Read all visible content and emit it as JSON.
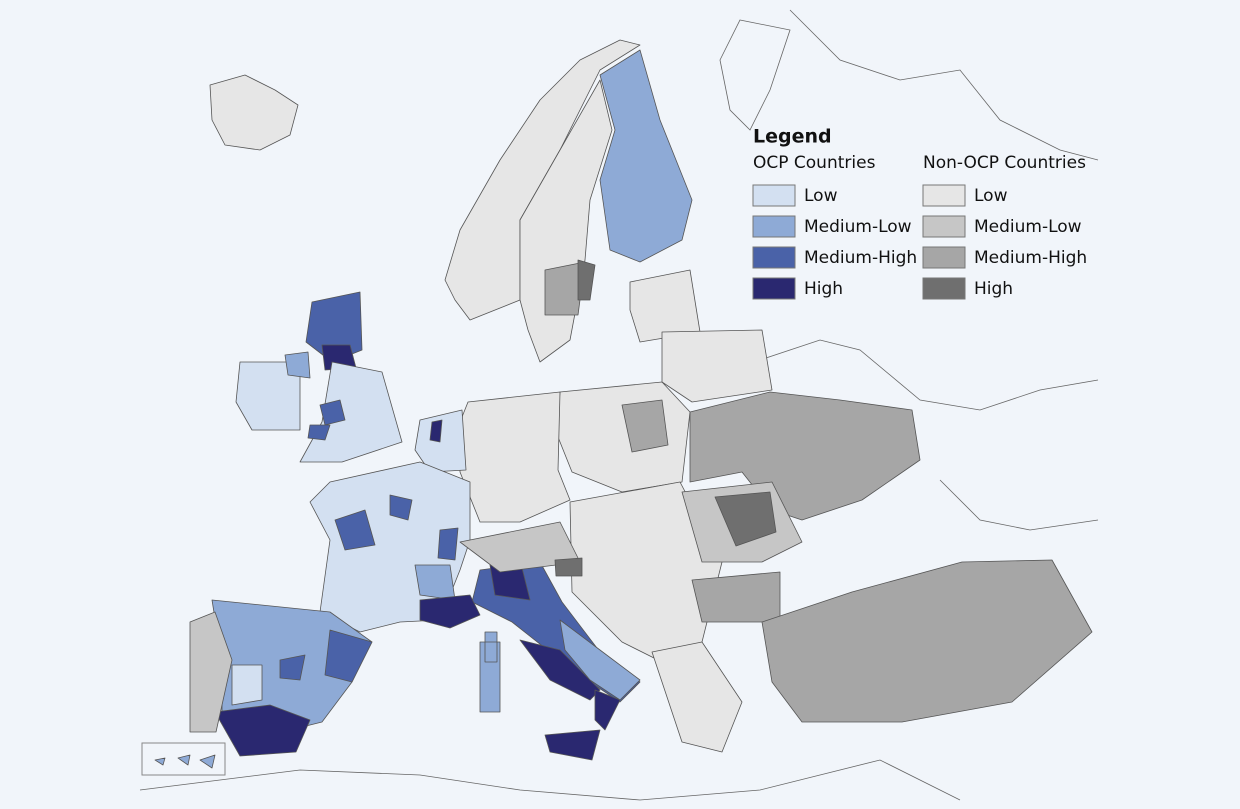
{
  "legend": {
    "title": "Legend",
    "groups": [
      {
        "title": "OCP Countries",
        "items": [
          {
            "label": "Low",
            "color": "#d3e0f1"
          },
          {
            "label": "Medium-Low",
            "color": "#8eaad6"
          },
          {
            "label": "Medium-High",
            "color": "#4a62a8"
          },
          {
            "label": "High",
            "color": "#2a2870"
          }
        ]
      },
      {
        "title": "Non-OCP Countries",
        "items": [
          {
            "label": "Low",
            "color": "#e6e6e6"
          },
          {
            "label": "Medium-Low",
            "color": "#c6c6c6"
          },
          {
            "label": "Medium-High",
            "color": "#a6a6a6"
          },
          {
            "label": "High",
            "color": "#6f6f6f"
          }
        ]
      }
    ]
  }
}
